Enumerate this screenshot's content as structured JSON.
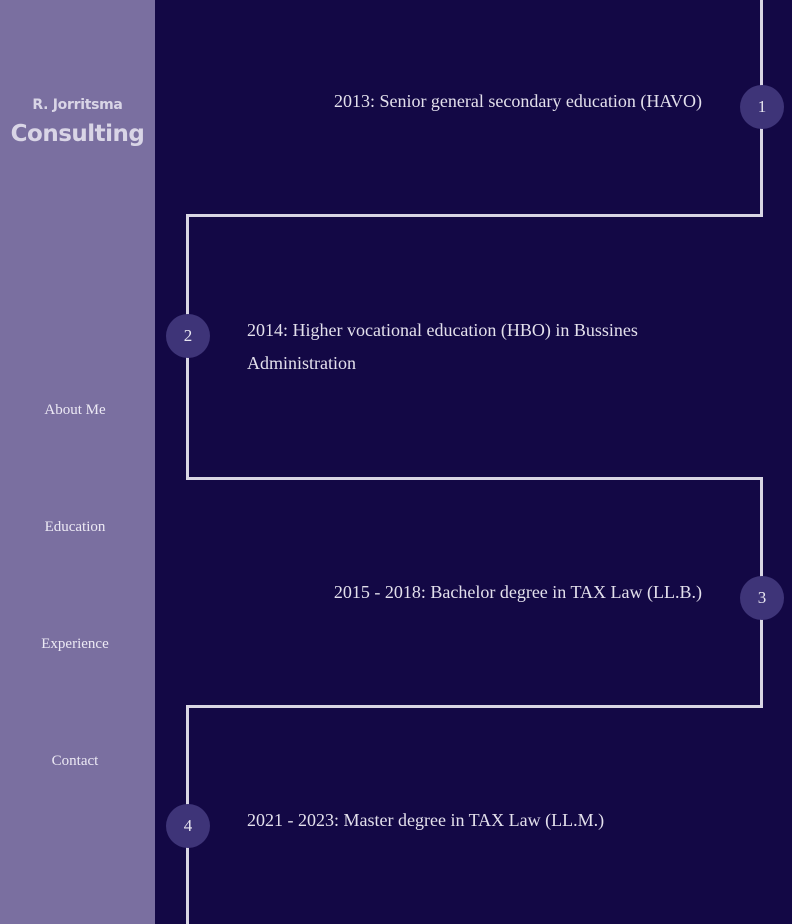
{
  "brand": {
    "name_small": "R. Jorritsma",
    "name_large": "Consulting"
  },
  "nav": {
    "items": [
      "About Me",
      "Education",
      "Experience",
      "Contact"
    ]
  },
  "timeline": {
    "entries": [
      {
        "number": "1",
        "text": "2013: Senior general secondary education (HAVO)"
      },
      {
        "number": "2",
        "text": "2014: Higher vocational education (HBO) in Bussines Administration"
      },
      {
        "number": "3",
        "text": "2015 - 2018: Bachelor degree in TAX Law (LL.B.)"
      },
      {
        "number": "4",
        "text": "2021 - 2023: Master degree in TAX Law (LL.M.)"
      }
    ]
  }
}
